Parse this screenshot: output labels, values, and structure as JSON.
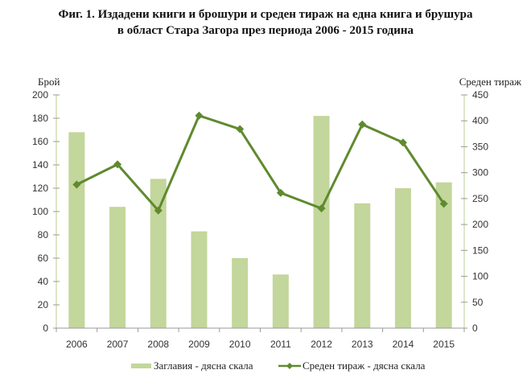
{
  "chart_data": {
    "type": "bar+line",
    "title_line1": "Фиг. 1. Издадени книги и брошури и среден тираж на една книга и брушура",
    "title_line2": "в област Стара Загора през периода 2006 - 2015 година",
    "categories": [
      "2006",
      "2007",
      "2008",
      "2009",
      "2010",
      "2011",
      "2012",
      "2013",
      "2014",
      "2015"
    ],
    "left_axis": {
      "label": "Брой",
      "range": [
        0,
        200
      ],
      "ticks": [
        0,
        20,
        40,
        60,
        80,
        100,
        120,
        140,
        160,
        180,
        200
      ]
    },
    "right_axis": {
      "label": "Среден тираж",
      "range": [
        0,
        450
      ],
      "ticks": [
        0,
        50,
        100,
        150,
        200,
        250,
        300,
        350,
        400,
        450
      ]
    },
    "series": [
      {
        "name": "Заглавия - дясна скала",
        "type": "bar",
        "axis": "left",
        "color": "#c3d69b",
        "values": [
          168,
          104,
          128,
          83,
          60,
          46,
          182,
          107,
          120,
          125
        ]
      },
      {
        "name": "Среден тираж - дясна скала",
        "type": "line",
        "axis": "right",
        "color": "#5f8a2e",
        "values": [
          277,
          316,
          227,
          410,
          384,
          261,
          231,
          393,
          358,
          240
        ]
      }
    ],
    "legend": "bottom",
    "grid": false
  }
}
